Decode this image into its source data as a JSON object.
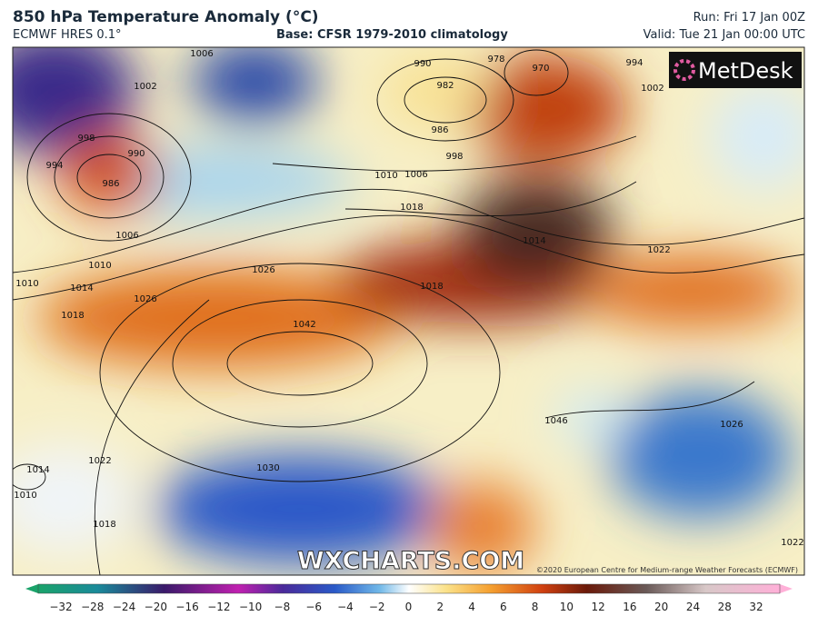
{
  "header": {
    "title": "850 hPa Temperature Anomaly (°C)",
    "model": "ECMWF HRES 0.1°",
    "base": "Base: CFSR 1979-2010 climatology",
    "run": "Run: Fri 17 Jan 00Z",
    "valid": "Valid: Tue 21 Jan 00:00 UTC"
  },
  "logo": "MetDesk",
  "watermark": "WXCHARTS.COM",
  "copyright": "©2020 European Centre for Medium-range Weather Forecasts (ECMWF)",
  "isobars": [
    "1006",
    "1002",
    "998",
    "994",
    "990",
    "986",
    "1006",
    "1010",
    "1014",
    "1018",
    "1026",
    "990",
    "982",
    "986",
    "978",
    "970",
    "998",
    "994",
    "1002",
    "1010",
    "1006",
    "1018",
    "1014",
    "1022",
    "1018",
    "1026",
    "1042",
    "1022",
    "1030",
    "1014",
    "1010",
    "1018",
    "1046",
    "1026",
    "1022",
    "1010"
  ],
  "colorbar": [
    "−32",
    "−28",
    "−24",
    "−20",
    "−16",
    "−12",
    "−10",
    "−8",
    "−6",
    "−4",
    "−2",
    "0",
    "2",
    "4",
    "6",
    "8",
    "10",
    "12",
    "16",
    "20",
    "24",
    "28",
    "32"
  ]
}
